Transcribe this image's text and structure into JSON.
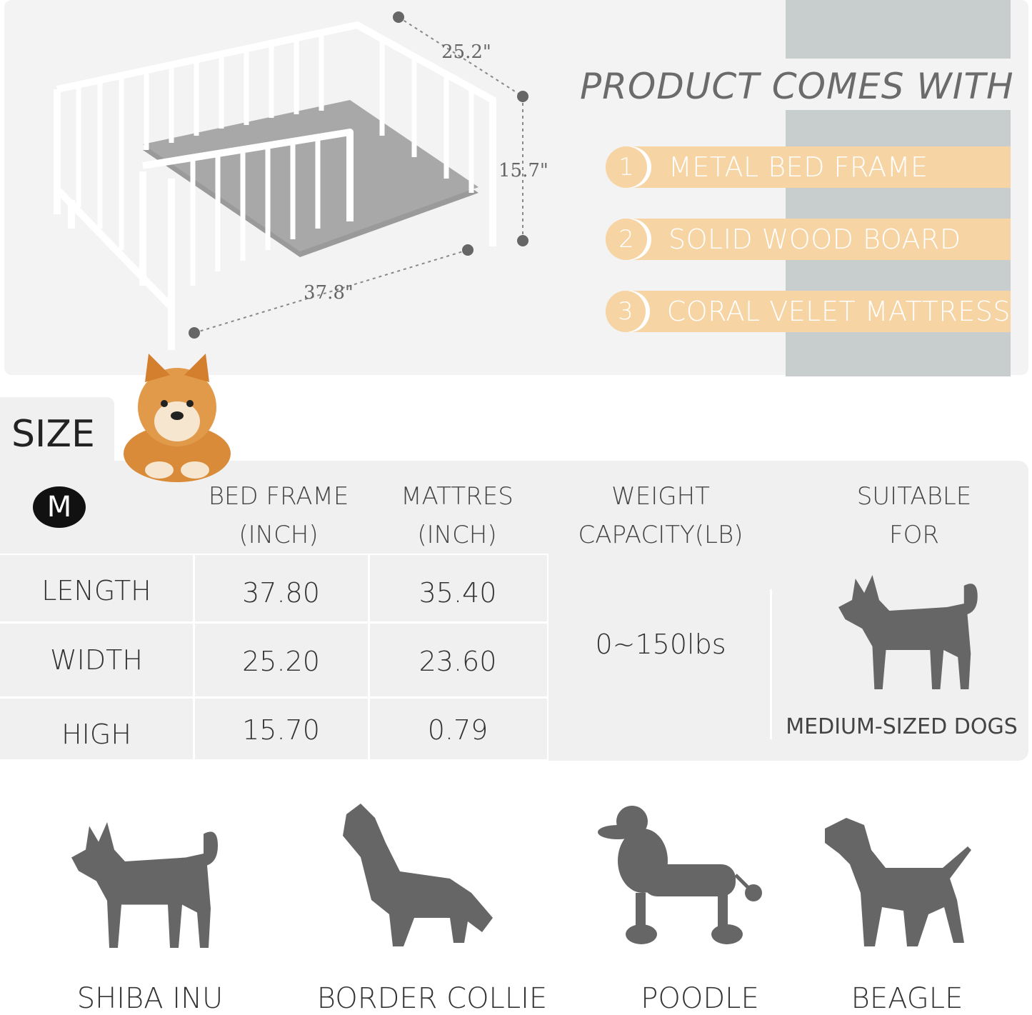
{
  "header": {
    "title": "PRODUCT COMES WITH"
  },
  "items": [
    {
      "num": "1",
      "label": "METAL BED FRAME"
    },
    {
      "num": "2",
      "label": "SOLID WOOD BOARD"
    },
    {
      "num": "3",
      "label": "CORAL VELET MATTRESS"
    }
  ],
  "dimensions": {
    "depth": "25.2\"",
    "height": "15.7\"",
    "length": "37.8\""
  },
  "size": {
    "label": "SIZE",
    "badge": "M"
  },
  "table": {
    "headers": [
      "BED FRAME\n(INCH)",
      "MATTRES\n(INCH)",
      "WEIGHT\nCAPACITY(LB)",
      "SUITABLE\nFOR"
    ],
    "rows": [
      {
        "label": "LENGTH",
        "frame": "37.80",
        "mattress": "35.40"
      },
      {
        "label": "WIDTH",
        "frame": "25.20",
        "mattress": "23.60"
      },
      {
        "label": "HIGH",
        "frame": "15.70",
        "mattress": "0.79"
      }
    ],
    "capacity": "0~150lbs",
    "suitable": "MEDIUM-SIZED DOGS"
  },
  "breeds": [
    "SHIBA INU",
    "BORDER COLLIE",
    "POODLE",
    "BEAGLE"
  ],
  "colors": {
    "accent": "#f6d4a4",
    "stripe": "#c8cecd",
    "silhouette": "#666666"
  }
}
